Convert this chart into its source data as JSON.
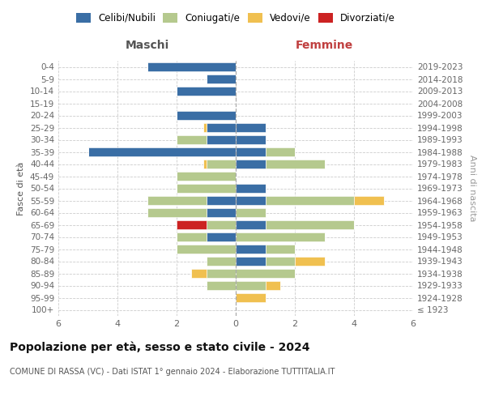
{
  "age_groups": [
    "100+",
    "95-99",
    "90-94",
    "85-89",
    "80-84",
    "75-79",
    "70-74",
    "65-69",
    "60-64",
    "55-59",
    "50-54",
    "45-49",
    "40-44",
    "35-39",
    "30-34",
    "25-29",
    "20-24",
    "15-19",
    "10-14",
    "5-9",
    "0-4"
  ],
  "birth_years": [
    "≤ 1923",
    "1924-1928",
    "1929-1933",
    "1934-1938",
    "1939-1943",
    "1944-1948",
    "1949-1953",
    "1954-1958",
    "1959-1963",
    "1964-1968",
    "1969-1973",
    "1974-1978",
    "1979-1983",
    "1984-1988",
    "1989-1993",
    "1994-1998",
    "1999-2003",
    "2004-2008",
    "2009-2013",
    "2014-2018",
    "2019-2023"
  ],
  "colors": {
    "celibi": "#3a6ea5",
    "coniugati": "#b5c98e",
    "vedovi": "#f0c050",
    "divorziati": "#cc2222"
  },
  "male": {
    "celibi": [
      0,
      0,
      0,
      0,
      0,
      0,
      1,
      0,
      1,
      1,
      0,
      0,
      0,
      5,
      1,
      1,
      2,
      0,
      2,
      1,
      3
    ],
    "coniugati": [
      0,
      0,
      1,
      1,
      1,
      2,
      1,
      1,
      2,
      2,
      2,
      2,
      1,
      0,
      1,
      0,
      0,
      0,
      0,
      0,
      0
    ],
    "vedovi": [
      0,
      0,
      0,
      0.5,
      0,
      0,
      0,
      0,
      0,
      0,
      0,
      0,
      0.1,
      0,
      0,
      0.1,
      0,
      0,
      0,
      0,
      0
    ],
    "divorziati": [
      0,
      0,
      0,
      0,
      0,
      0,
      0,
      1,
      0,
      0,
      0,
      0,
      0,
      0,
      0,
      0,
      0,
      0,
      0,
      0,
      0
    ]
  },
  "female": {
    "celibi": [
      0,
      0,
      0,
      0,
      1,
      1,
      0,
      1,
      0,
      1,
      1,
      0,
      1,
      1,
      1,
      1,
      0,
      0,
      0,
      0,
      0
    ],
    "coniugati": [
      0,
      0,
      1,
      2,
      1,
      1,
      3,
      3,
      1,
      3,
      0,
      0,
      2,
      1,
      0,
      0,
      0,
      0,
      0,
      0,
      0
    ],
    "vedovi": [
      0,
      1,
      0.5,
      0,
      1,
      0,
      0,
      0,
      0,
      1,
      0,
      0,
      0,
      0,
      0,
      0,
      0,
      0,
      0,
      0,
      0
    ],
    "divorziati": [
      0,
      0,
      0,
      0,
      0,
      0,
      0,
      0,
      0,
      0,
      0,
      0,
      0,
      0,
      0,
      0,
      0,
      0,
      0,
      0,
      0
    ]
  },
  "xlim": 6,
  "title": "Popolazione per età, sesso e stato civile - 2024",
  "subtitle": "COMUNE DI RASSA (VC) - Dati ISTAT 1° gennaio 2024 - Elaborazione TUTTITALIA.IT",
  "ylabel_left": "Fasce di età",
  "ylabel_right": "Anni di nascita",
  "xlabel_left": "Maschi",
  "xlabel_right": "Femmine",
  "legend_labels": [
    "Celibi/Nubili",
    "Coniugati/e",
    "Vedovi/e",
    "Divorziati/e"
  ],
  "legend_colors": [
    "#3a6ea5",
    "#b5c98e",
    "#f0c050",
    "#cc2222"
  ]
}
